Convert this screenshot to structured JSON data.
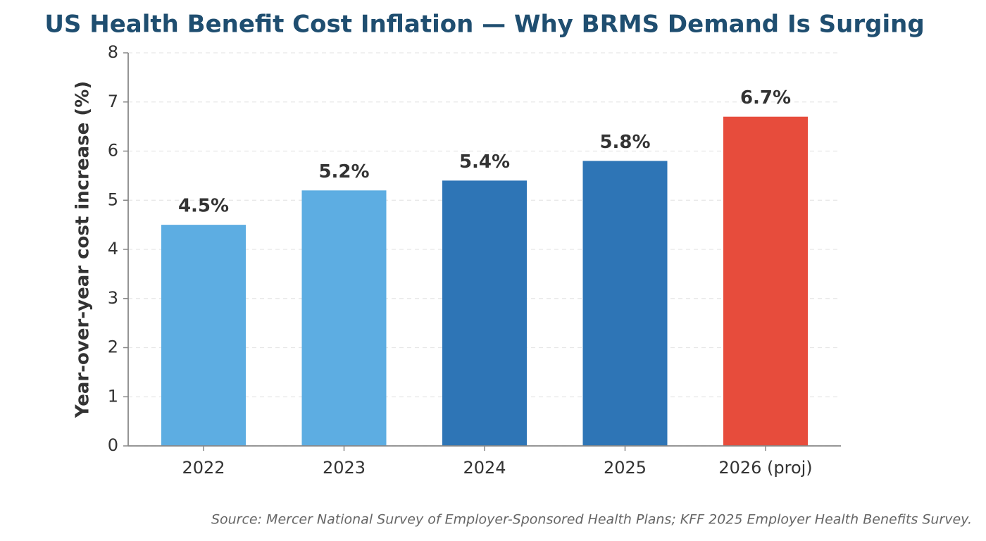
{
  "chart_data": {
    "type": "bar",
    "title": "US Health Benefit Cost Inflation — Why BRMS Demand Is Surging",
    "y_label": "Year-over-year cost increase (%)",
    "source": "Source: Mercer National Survey of Employer-Sponsored Health Plans; KFF 2025 Employer Health Benefits Survey.",
    "categories": [
      "2022",
      "2023",
      "2024",
      "2025",
      "2026 (proj)"
    ],
    "values": [
      4.5,
      5.2,
      5.4,
      5.8,
      6.7
    ],
    "value_labels": [
      "4.5%",
      "5.2%",
      "5.4%",
      "5.8%",
      "6.7%"
    ],
    "colors": [
      "#5dade2",
      "#5dade2",
      "#2e75b6",
      "#2e75b6",
      "#e74c3c"
    ],
    "ylim": [
      0,
      8
    ],
    "yticks": [
      0,
      1,
      2,
      3,
      4,
      5,
      6,
      7,
      8
    ],
    "grid": true
  }
}
